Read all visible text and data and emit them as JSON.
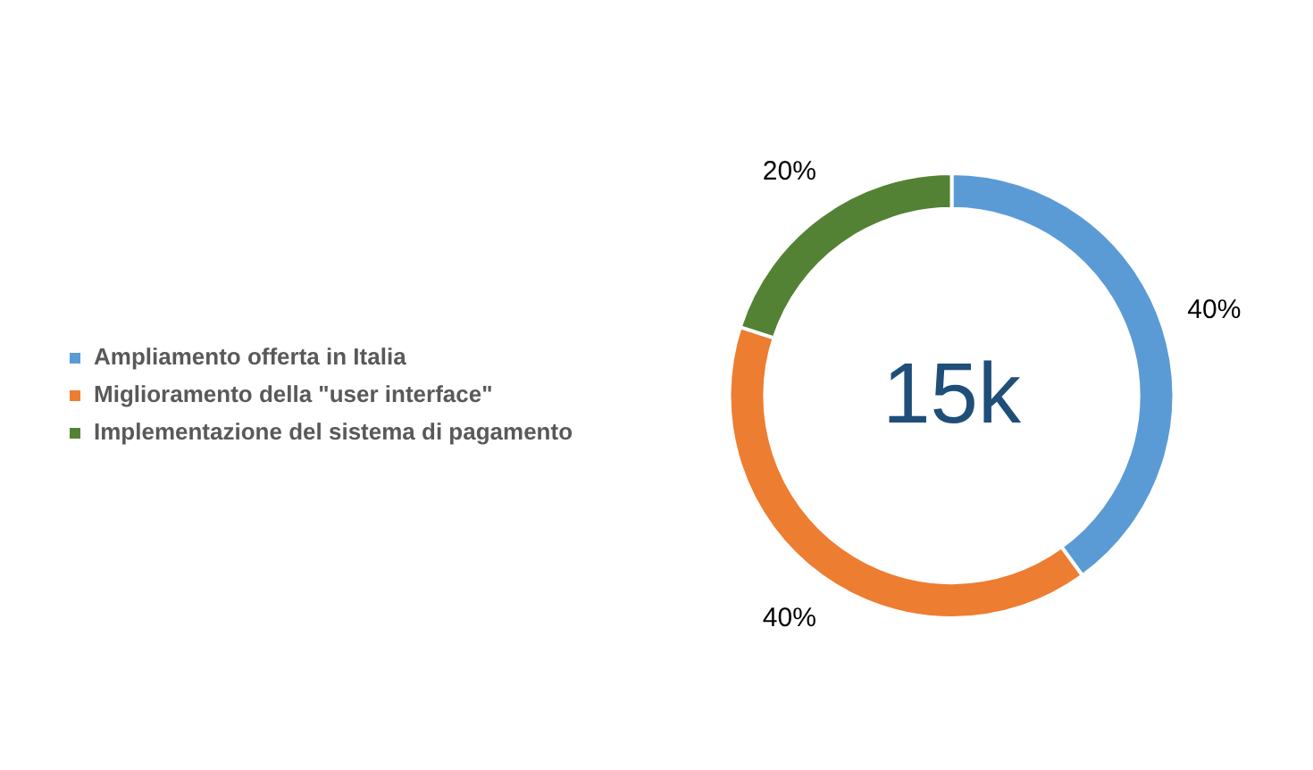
{
  "chart_data": {
    "type": "donut",
    "categories": [
      "Ampliamento offerta in Italia",
      "Miglioramento della \"user interface\"",
      "Implementazione del sistema di pagamento"
    ],
    "values": [
      40,
      40,
      20
    ],
    "colors": [
      "#5b9bd5",
      "#ed7d31",
      "#548235"
    ],
    "value_labels": [
      "40%",
      "40%",
      "20%"
    ],
    "legend": "left",
    "annotations": [
      "15k"
    ]
  }
}
